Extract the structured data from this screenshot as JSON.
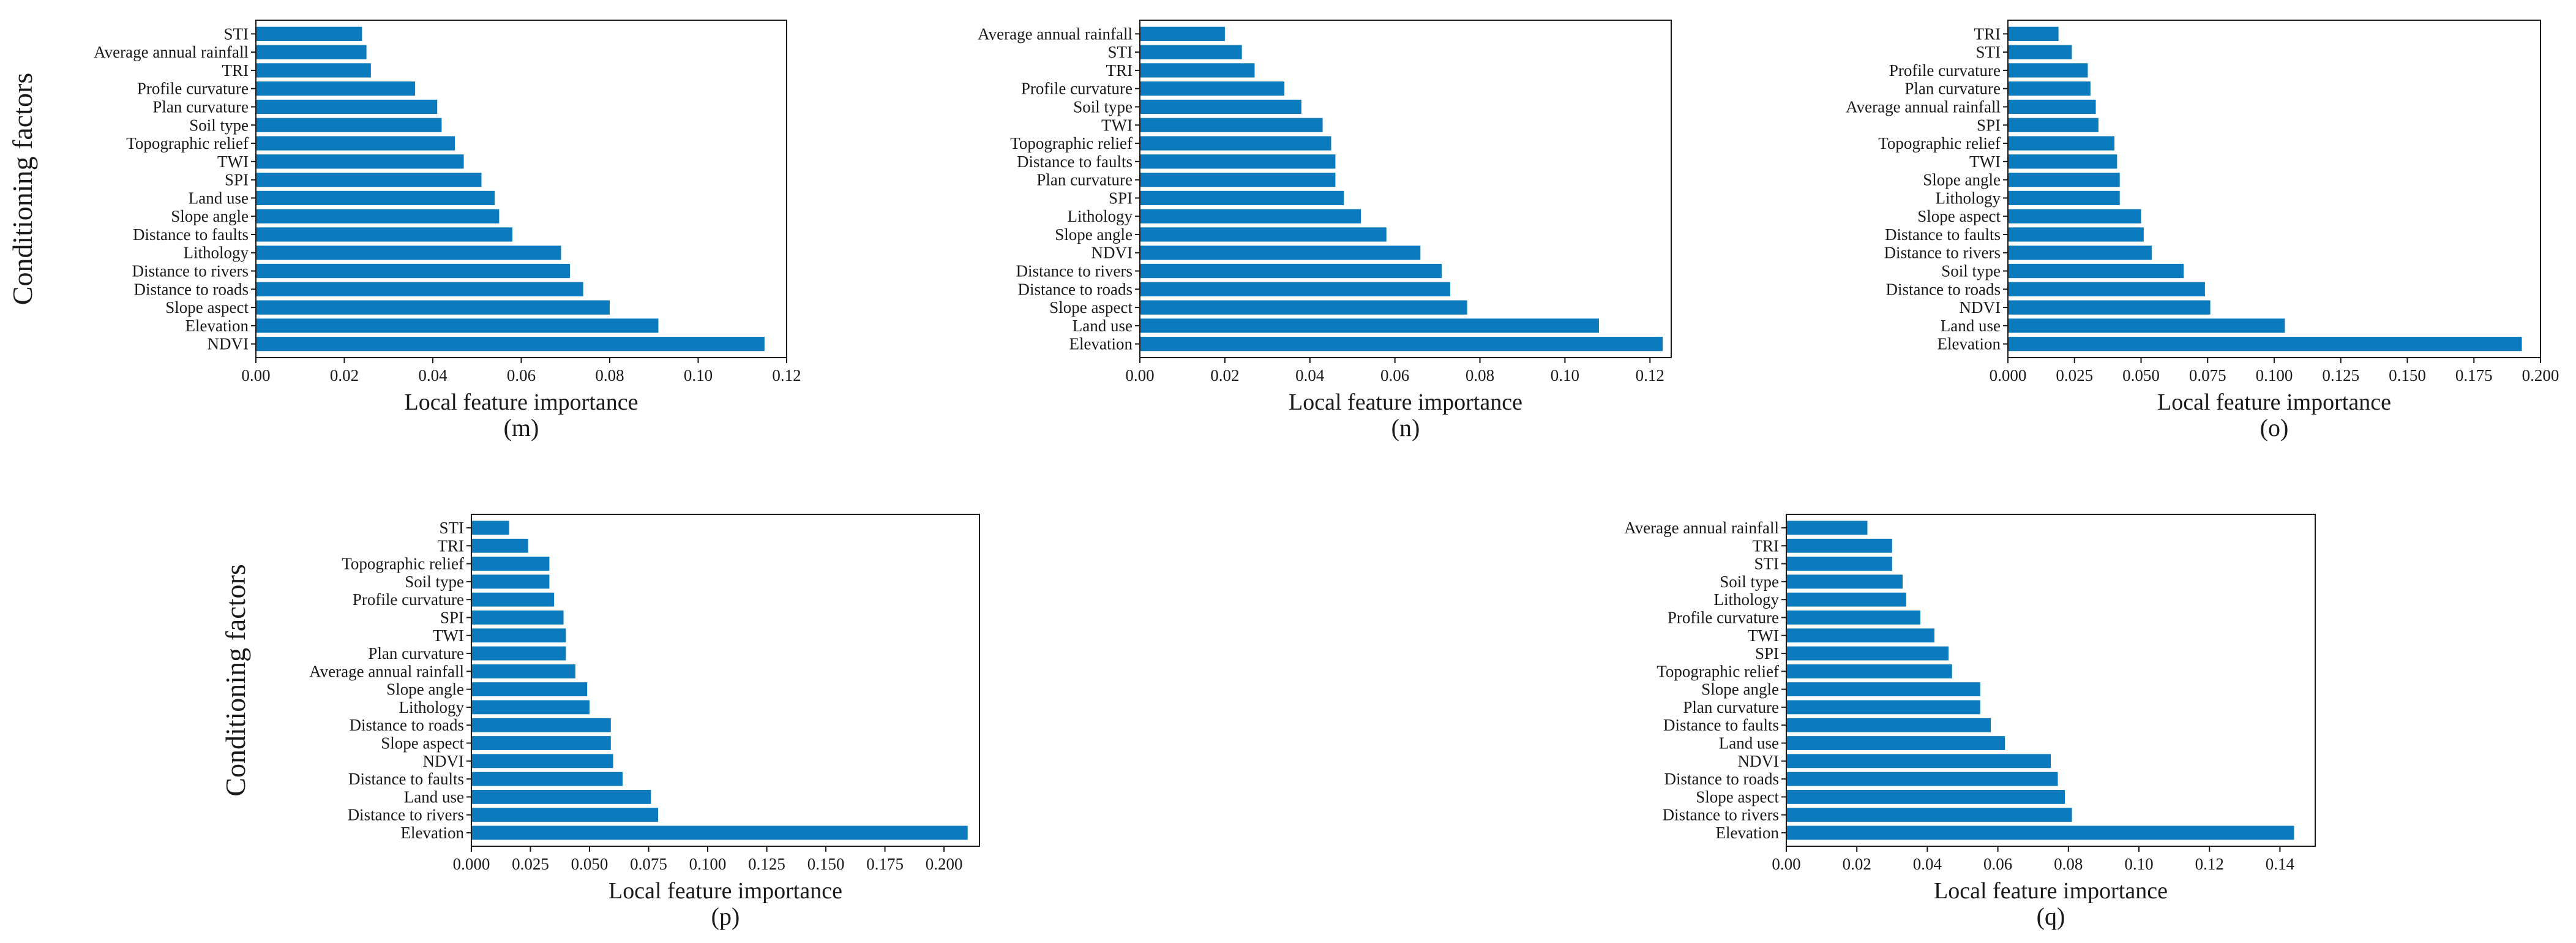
{
  "chart_data": [
    {
      "type": "bar",
      "orientation": "horizontal",
      "panel_label": "(m)",
      "xlabel": "Local feature importance",
      "ylabel": "Conditioning factors",
      "xlim": [
        0,
        0.12
      ],
      "xticks": [
        0.0,
        0.02,
        0.04,
        0.06,
        0.08,
        0.1,
        0.12
      ],
      "xtick_labels": [
        "0.00",
        "0.02",
        "0.04",
        "0.06",
        "0.08",
        "0.10",
        "0.12"
      ],
      "categories": [
        "STI",
        "Average annual rainfall",
        "TRI",
        "Profile curvature",
        "Plan curvature",
        "Soil type",
        "Topographic relief",
        "TWI",
        "SPI",
        "Land use",
        "Slope angle",
        "Distance to faults",
        "Lithology",
        "Distance to rivers",
        "Distance to roads",
        "Slope aspect",
        "Elevation",
        "NDVI"
      ],
      "values": [
        0.024,
        0.025,
        0.026,
        0.036,
        0.041,
        0.042,
        0.045,
        0.047,
        0.051,
        0.054,
        0.055,
        0.058,
        0.069,
        0.071,
        0.074,
        0.08,
        0.091,
        0.115
      ],
      "color": "#0b7bbd"
    },
    {
      "type": "bar",
      "orientation": "horizontal",
      "panel_label": "(n)",
      "xlabel": "Local feature importance",
      "ylabel": "",
      "xlim": [
        0,
        0.125
      ],
      "xticks": [
        0.0,
        0.02,
        0.04,
        0.06,
        0.08,
        0.1,
        0.12
      ],
      "xtick_labels": [
        "0.00",
        "0.02",
        "0.04",
        "0.06",
        "0.08",
        "0.10",
        "0.12"
      ],
      "categories": [
        "Average annual rainfall",
        "STI",
        "TRI",
        "Profile curvature",
        "Soil type",
        "TWI",
        "Topographic relief",
        "Distance to faults",
        "Plan curvature",
        "SPI",
        "Lithology",
        "Slope angle",
        "NDVI",
        "Distance to rivers",
        "Distance to roads",
        "Slope aspect",
        "Land use",
        "Elevation"
      ],
      "values": [
        0.02,
        0.024,
        0.027,
        0.034,
        0.038,
        0.043,
        0.045,
        0.046,
        0.046,
        0.048,
        0.052,
        0.058,
        0.066,
        0.071,
        0.073,
        0.077,
        0.108,
        0.123
      ],
      "color": "#0b7bbd"
    },
    {
      "type": "bar",
      "orientation": "horizontal",
      "panel_label": "(o)",
      "xlabel": "Local feature importance",
      "ylabel": "",
      "xlim": [
        0,
        0.2
      ],
      "xticks": [
        0.0,
        0.025,
        0.05,
        0.075,
        0.1,
        0.125,
        0.15,
        0.175,
        0.2
      ],
      "xtick_labels": [
        "0.000",
        "0.025",
        "0.050",
        "0.075",
        "0.100",
        "0.125",
        "0.150",
        "0.175",
        "0.200"
      ],
      "categories": [
        "TRI",
        "STI",
        "Profile curvature",
        "Plan curvature",
        "Average annual rainfall",
        "SPI",
        "Topographic relief",
        "TWI",
        "Slope angle",
        "Lithology",
        "Slope aspect",
        "Distance to faults",
        "Distance to rivers",
        "Soil type",
        "Distance to roads",
        "NDVI",
        "Land use",
        "Elevation"
      ],
      "values": [
        0.019,
        0.024,
        0.03,
        0.031,
        0.033,
        0.034,
        0.04,
        0.041,
        0.042,
        0.042,
        0.05,
        0.051,
        0.054,
        0.066,
        0.074,
        0.076,
        0.104,
        0.193
      ],
      "color": "#0b7bbd"
    },
    {
      "type": "bar",
      "orientation": "horizontal",
      "panel_label": "(p)",
      "xlabel": "Local feature importance",
      "ylabel": "Conditioning factors",
      "xlim": [
        0,
        0.215
      ],
      "xticks": [
        0.0,
        0.025,
        0.05,
        0.075,
        0.1,
        0.125,
        0.15,
        0.175,
        0.2
      ],
      "xtick_labels": [
        "0.000",
        "0.025",
        "0.050",
        "0.075",
        "0.100",
        "0.125",
        "0.150",
        "0.175",
        "0.200"
      ],
      "categories": [
        "STI",
        "TRI",
        "Topographic relief",
        "Soil type",
        "Profile curvature",
        "SPI",
        "TWI",
        "Plan curvature",
        "Average annual rainfall",
        "Slope angle",
        "Lithology",
        "Distance to roads",
        "Slope aspect",
        "NDVI",
        "Distance to faults",
        "Land use",
        "Distance to rivers",
        "Elevation"
      ],
      "values": [
        0.016,
        0.024,
        0.033,
        0.033,
        0.035,
        0.039,
        0.04,
        0.04,
        0.044,
        0.049,
        0.05,
        0.059,
        0.059,
        0.06,
        0.064,
        0.076,
        0.079,
        0.21
      ],
      "color": "#0b7bbd"
    },
    {
      "type": "bar",
      "orientation": "horizontal",
      "panel_label": "(q)",
      "xlabel": "Local feature importance",
      "ylabel": "",
      "xlim": [
        0,
        0.15
      ],
      "xticks": [
        0.0,
        0.02,
        0.04,
        0.06,
        0.08,
        0.1,
        0.12,
        0.14
      ],
      "xtick_labels": [
        "0.00",
        "0.02",
        "0.04",
        "0.06",
        "0.08",
        "0.10",
        "0.12",
        "0.14"
      ],
      "categories": [
        "Average annual rainfall",
        "TRI",
        "STI",
        "Soil type",
        "Lithology",
        "Profile curvature",
        "TWI",
        "SPI",
        "Topographic relief",
        "Slope angle",
        "Plan curvature",
        "Distance to faults",
        "Land use",
        "NDVI",
        "Distance to roads",
        "Slope aspect",
        "Distance to rivers",
        "Elevation"
      ],
      "values": [
        0.023,
        0.03,
        0.03,
        0.033,
        0.034,
        0.038,
        0.042,
        0.046,
        0.047,
        0.055,
        0.055,
        0.058,
        0.062,
        0.075,
        0.077,
        0.079,
        0.081,
        0.144
      ],
      "color": "#0b7bbd"
    }
  ]
}
